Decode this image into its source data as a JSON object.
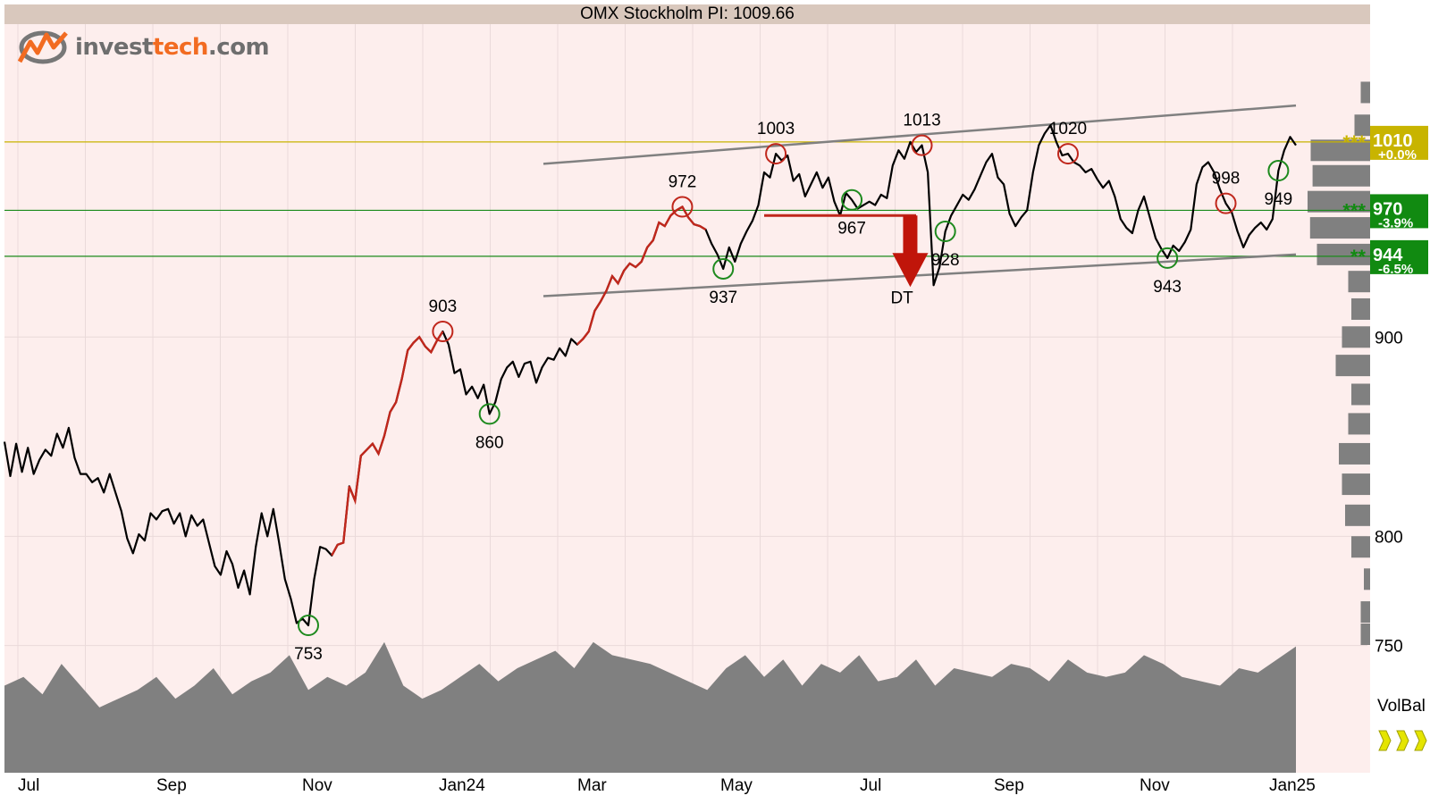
{
  "title": "OMX Stockholm PI: 1009.66",
  "logo": {
    "brand": "investtech.com",
    "prefix": "invest",
    "accent": "tech",
    "suffix": ".com"
  },
  "colors": {
    "background": "#fdeeed",
    "up_segment": "#c0271c",
    "down_segment": "#22a022",
    "resistance": "#c8b400",
    "support": "#1a8a1a",
    "channel": "#808080",
    "volume": "#808080"
  },
  "chart_data": {
    "type": "line",
    "y_scale": "log",
    "ylim": [
      740,
      1060
    ],
    "y_ticks": [
      750,
      800,
      900
    ],
    "x_ticks": [
      "Jul",
      "Sep",
      "Nov",
      "Jan24",
      "Mar",
      "May",
      "Jul",
      "Sep",
      "Nov",
      "Jan25"
    ],
    "grid": true,
    "series": [
      {
        "values": [
          846,
          829,
          845,
          831,
          843,
          830,
          837,
          842,
          839,
          850,
          843,
          853,
          838,
          830,
          830,
          826,
          828,
          821,
          830,
          821,
          812,
          799,
          792,
          801,
          798,
          811,
          808,
          812,
          813,
          806,
          811,
          800,
          810,
          805,
          808,
          797,
          786,
          782,
          793,
          787,
          776,
          784,
          773,
          795,
          811,
          800,
          813,
          797,
          780,
          771,
          760,
          762,
          759,
          780,
          795,
          794,
          791,
          796,
          797,
          824,
          817,
          839,
          842,
          845,
          840,
          849,
          861,
          866,
          878,
          893,
          897,
          900,
          895,
          892,
          898,
          903,
          896,
          881,
          883,
          870,
          874,
          868,
          875,
          860,
          866,
          878,
          884,
          887,
          879,
          886,
          887,
          876,
          884,
          889,
          888,
          894,
          890,
          899,
          896,
          899,
          903,
          914,
          919,
          925,
          933,
          929,
          936,
          940,
          938,
          941,
          949,
          953,
          963,
          961,
          967,
          970,
          972,
          966,
          962,
          961,
          959,
          951,
          945,
          937,
          949,
          941,
          951,
          958,
          964,
          973,
          992,
          989,
          1003,
          999,
          1002,
          987,
          991,
          978,
          985,
          992,
          983,
          989,
          975,
          967,
          980,
          976,
          971,
          973,
          975,
          973,
          979,
          977,
          996,
          1005,
          1000,
          1010,
          1004,
          1008,
          992,
          928,
          938,
          958,
          967,
          973,
          979,
          976,
          982,
          990,
          998,
          1003,
          989,
          985,
          968,
          961,
          966,
          970,
          992,
          1008,
          1015,
          1020,
          1010,
          1002,
          1003,
          998,
          996,
          992,
          994,
          988,
          983,
          987,
          978,
          965,
          960,
          957,
          970,
          978,
          966,
          954,
          948,
          943,
          950,
          947,
          952,
          959,
          985,
          995,
          998,
          992,
          982,
          974,
          969,
          958,
          949,
          956,
          960,
          963,
          959,
          965,
          993,
          1005,
          1013,
          1008
        ],
        "line_color": "#000000"
      },
      {
        "name": "VolBal",
        "values": [
          60,
          62,
          58,
          65,
          60,
          55,
          57,
          59,
          62,
          57,
          60,
          64,
          58,
          61,
          63,
          67,
          59,
          62,
          60,
          63,
          70,
          60,
          57,
          59,
          62,
          65,
          61,
          64,
          66,
          68,
          64,
          70,
          67,
          66,
          65,
          63,
          61,
          59,
          64,
          67,
          62,
          66,
          60,
          65,
          63,
          67,
          61,
          62,
          66,
          60,
          64,
          63,
          62,
          65,
          64,
          61,
          66,
          63,
          62,
          63,
          67,
          65,
          62,
          61,
          60,
          64,
          63,
          66,
          69
        ],
        "area_color": "#808080"
      }
    ],
    "horizontal_lines": [
      {
        "value": 1010,
        "label": "1010",
        "change": "+0.0%",
        "stars": "***",
        "type": "resistance"
      },
      {
        "value": 970,
        "label": "970",
        "change": "-3.9%",
        "stars": "***",
        "type": "support"
      },
      {
        "value": 944,
        "label": "944",
        "change": "-6.5%",
        "stars": "**",
        "type": "support"
      }
    ],
    "channel": {
      "upper": {
        "from": 997,
        "to": 1032
      },
      "lower": {
        "from": 922,
        "to": 945
      }
    },
    "extrema": [
      {
        "label": "753",
        "kind": "low"
      },
      {
        "label": "903",
        "kind": "high"
      },
      {
        "label": "860",
        "kind": "low"
      },
      {
        "label": "972",
        "kind": "high"
      },
      {
        "label": "937",
        "kind": "low"
      },
      {
        "label": "1003",
        "kind": "high"
      },
      {
        "label": "967",
        "kind": "low"
      },
      {
        "label": "1013",
        "kind": "high"
      },
      {
        "label": "928",
        "kind": "low"
      },
      {
        "label": "1020",
        "kind": "high"
      },
      {
        "label": "943",
        "kind": "low"
      },
      {
        "label": "998",
        "kind": "high"
      },
      {
        "label": "949",
        "kind": "low"
      }
    ],
    "pattern": {
      "label": "DT",
      "neckline": 967,
      "direction": "down"
    },
    "volume_profile": [
      {
        "price": 1040,
        "weight": 0.15
      },
      {
        "price": 1020,
        "weight": 0.25
      },
      {
        "price": 1005,
        "weight": 0.95
      },
      {
        "price": 990,
        "weight": 0.92
      },
      {
        "price": 975,
        "weight": 1.0
      },
      {
        "price": 960,
        "weight": 0.96
      },
      {
        "price": 945,
        "weight": 0.85
      },
      {
        "price": 930,
        "weight": 0.35
      },
      {
        "price": 915,
        "weight": 0.3
      },
      {
        "price": 900,
        "weight": 0.45
      },
      {
        "price": 885,
        "weight": 0.55
      },
      {
        "price": 870,
        "weight": 0.3
      },
      {
        "price": 855,
        "weight": 0.35
      },
      {
        "price": 840,
        "weight": 0.5
      },
      {
        "price": 825,
        "weight": 0.45
      },
      {
        "price": 810,
        "weight": 0.4
      },
      {
        "price": 795,
        "weight": 0.3
      },
      {
        "price": 780,
        "weight": 0.1
      },
      {
        "price": 765,
        "weight": 0.15
      },
      {
        "price": 755,
        "weight": 0.15
      }
    ],
    "volbal_label": "VolBal"
  }
}
